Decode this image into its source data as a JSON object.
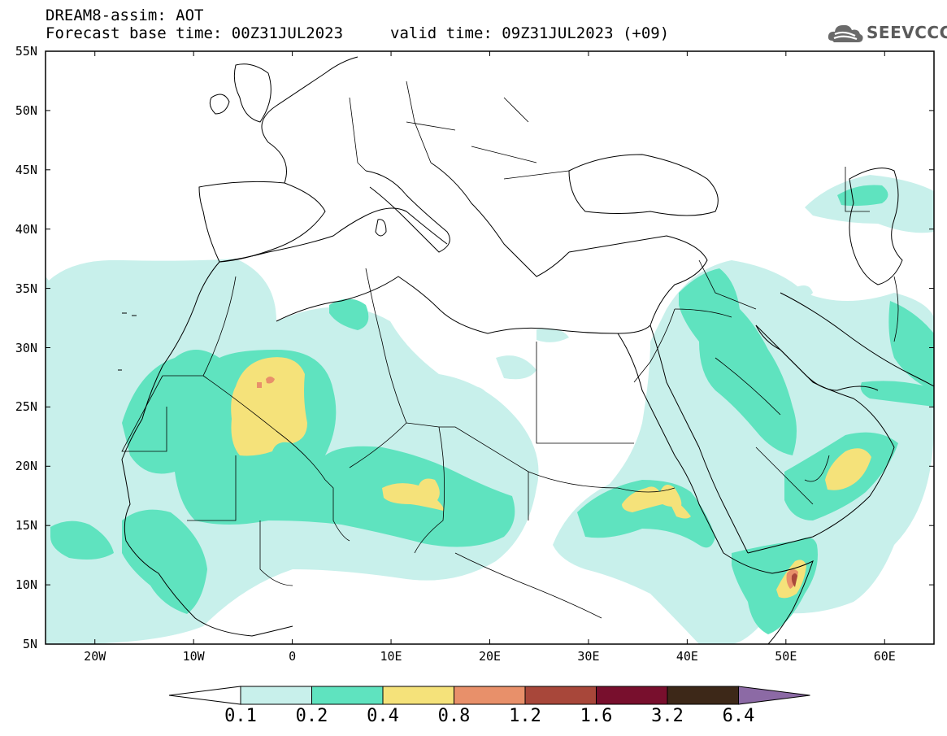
{
  "header": {
    "line1": "DREAM8-assim: AOT",
    "line2": "Forecast base time: 00Z31JUL2023",
    "valid": "valid time: 09Z31JUL2023 (+09)"
  },
  "logo": {
    "text": "SEEVCCC",
    "icon": "cloud-icon"
  },
  "map": {
    "lat_labels": [
      "55N",
      "50N",
      "45N",
      "40N",
      "35N",
      "30N",
      "25N",
      "20N",
      "15N",
      "10N",
      "5N"
    ],
    "lon_labels": [
      "20W",
      "10W",
      "0",
      "10E",
      "20E",
      "30E",
      "40E",
      "50E",
      "60E"
    ],
    "lat_range": [
      5,
      55
    ],
    "lon_range": [
      -25,
      65
    ]
  },
  "colorbar": {
    "labels": [
      "0.1",
      "0.2",
      "0.4",
      "0.8",
      "1.2",
      "1.6",
      "3.2",
      "6.4"
    ],
    "colors": [
      "#ffffff",
      "#c8f0eb",
      "#5fe3bf",
      "#f5e27a",
      "#e8906a",
      "#a8473a",
      "#780f2d",
      "#3d2818",
      "#8c6aa5"
    ]
  },
  "aot_colors": {
    "level_01": "#c8f0eb",
    "level_02": "#5fe3bf",
    "level_04": "#f5e27a",
    "level_08": "#e8906a",
    "level_12": "#a8473a"
  }
}
